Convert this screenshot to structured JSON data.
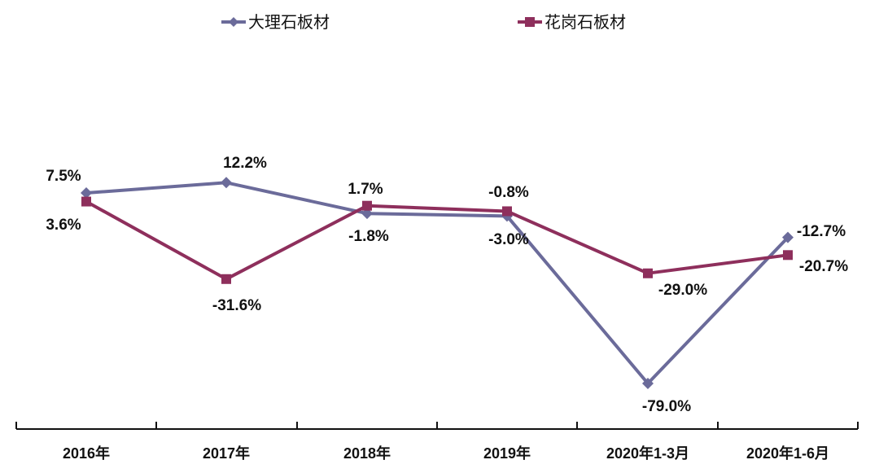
{
  "chart_data": {
    "type": "line",
    "title": "",
    "xlabel": "",
    "ylabel": "",
    "categories": [
      "2016年",
      "2017年",
      "2018年",
      "2019年",
      "2020年1-3月",
      "2020年1-6月"
    ],
    "series": [
      {
        "name": "大理石板材",
        "marker": "diamond",
        "color": "#6B6B9A",
        "values": [
          7.5,
          12.2,
          -1.8,
          -3.0,
          -79.0,
          -12.7
        ],
        "labels": [
          "7.5%",
          "12.2%",
          "-1.8%",
          "-3.0%",
          "-79.0%",
          "-12.7%"
        ]
      },
      {
        "name": "花岗石板材",
        "marker": "square",
        "color": "#8E2F5C",
        "values": [
          3.6,
          -31.6,
          1.7,
          -0.8,
          -29.0,
          -20.7
        ],
        "labels": [
          "3.6%",
          "-31.6%",
          "1.7%",
          "-0.8%",
          "-29.0%",
          "-20.7%"
        ]
      }
    ],
    "ylim": [
      -85,
      15
    ],
    "grid": false,
    "y_axis_visible": false,
    "legend_position": "top"
  },
  "legend": {
    "items": [
      {
        "label": "大理石板材",
        "color": "#6B6B9A",
        "marker": "diamond"
      },
      {
        "label": "花岗石板材",
        "color": "#8E2F5C",
        "marker": "square"
      }
    ]
  },
  "axis": {
    "color": "#111111"
  }
}
